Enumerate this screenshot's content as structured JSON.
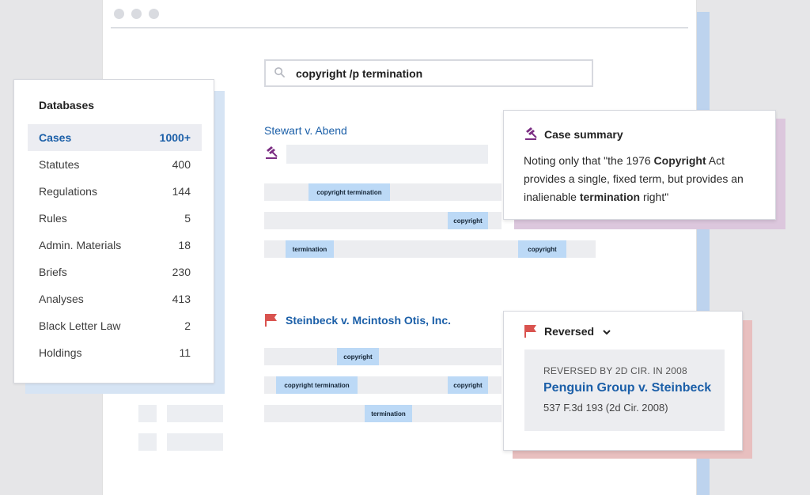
{
  "search": {
    "query": "copyright /p termination"
  },
  "results": [
    {
      "title": "Stewart v. Abend",
      "bars": [
        [
          "copyright termination"
        ],
        [
          "copyright"
        ],
        [
          "termination",
          "copyright"
        ]
      ]
    },
    {
      "title": "Steinbeck v. Mcintosh Otis, Inc.",
      "bars": [
        [
          "copyright"
        ],
        [
          "copyright termination",
          "copyright"
        ],
        [
          "termination"
        ]
      ]
    }
  ],
  "databases": {
    "title": "Databases",
    "items": [
      {
        "label": "Cases",
        "count": "1000+"
      },
      {
        "label": "Statutes",
        "count": "400"
      },
      {
        "label": "Regulations",
        "count": "144"
      },
      {
        "label": "Rules",
        "count": "5"
      },
      {
        "label": "Admin. Materials",
        "count": "18"
      },
      {
        "label": "Briefs",
        "count": "230"
      },
      {
        "label": "Analyses",
        "count": "413"
      },
      {
        "label": "Black Letter Law",
        "count": "2"
      },
      {
        "label": "Holdings",
        "count": "11"
      }
    ]
  },
  "case_summary": {
    "title": "Case summary",
    "text_1": "Noting only that \"the 1976 ",
    "bold_1": "Copyright",
    "text_2": " Act provides a single, fixed term, but provides an inalienable ",
    "bold_2": "termination",
    "text_3": " right\""
  },
  "reversed": {
    "status": "Reversed",
    "by": "REVERSED BY 2D CIR. IN 2008",
    "case": "Penguin Group v. Steinbeck",
    "citation": "537 F.3d 193 (2d Cir. 2008)"
  },
  "colors": {
    "link": "#1b5fa8",
    "highlight": "#bcd9f6",
    "flag": "#d9534f",
    "gavel": "#7b2d83"
  },
  "icons": {
    "search": "search-icon",
    "gavel": "gavel-icon",
    "flag": "red-flag-icon",
    "chevron": "chevron-down-icon"
  }
}
